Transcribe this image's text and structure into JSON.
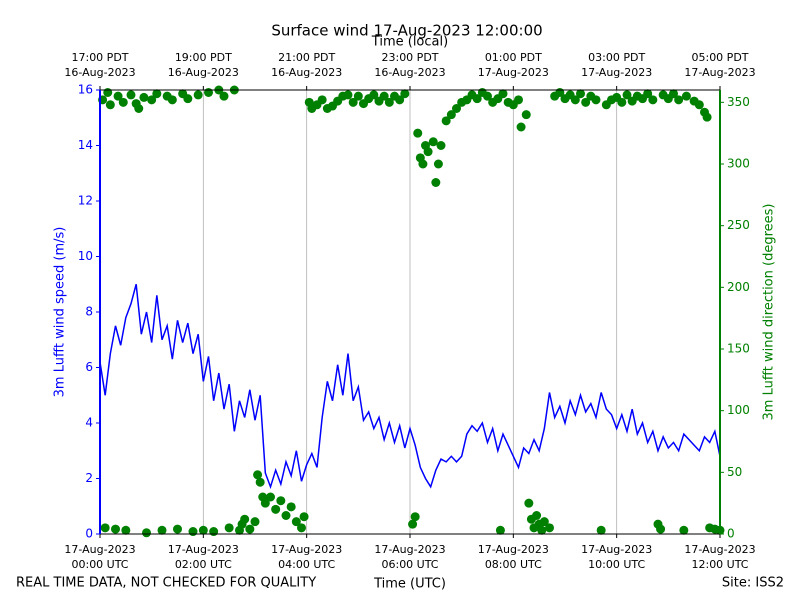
{
  "chart_data": {
    "type": "scatter",
    "title": "Surface wind 17-Aug-2023 12:00:00",
    "xlabel": "Time (UTC)",
    "x2label": "Time (local)",
    "ylabel": "3m Lufft wind speed (m/s)",
    "y2label": "3m Lufft wind direction (degrees)",
    "footer_left": "REAL TIME DATA, NOT CHECKED FOR QUALITY",
    "footer_right": "Site: ISS2",
    "grid": true,
    "xlim": [
      0,
      12
    ],
    "xticks": [
      {
        "value": 0,
        "label": [
          "17-Aug-2023",
          "00:00 UTC"
        ]
      },
      {
        "value": 2,
        "label": [
          "17-Aug-2023",
          "02:00 UTC"
        ]
      },
      {
        "value": 4,
        "label": [
          "17-Aug-2023",
          "04:00 UTC"
        ]
      },
      {
        "value": 6,
        "label": [
          "17-Aug-2023",
          "06:00 UTC"
        ]
      },
      {
        "value": 8,
        "label": [
          "17-Aug-2023",
          "08:00 UTC"
        ]
      },
      {
        "value": 10,
        "label": [
          "17-Aug-2023",
          "10:00 UTC"
        ]
      },
      {
        "value": 12,
        "label": [
          "17-Aug-2023",
          "12:00 UTC"
        ]
      }
    ],
    "x2ticks": [
      {
        "value": 0,
        "label": [
          "17:00 PDT",
          "16-Aug-2023"
        ]
      },
      {
        "value": 2,
        "label": [
          "19:00 PDT",
          "16-Aug-2023"
        ]
      },
      {
        "value": 4,
        "label": [
          "21:00 PDT",
          "16-Aug-2023"
        ]
      },
      {
        "value": 6,
        "label": [
          "23:00 PDT",
          "16-Aug-2023"
        ]
      },
      {
        "value": 8,
        "label": [
          "01:00 PDT",
          "17-Aug-2023"
        ]
      },
      {
        "value": 10,
        "label": [
          "03:00 PDT",
          "17-Aug-2023"
        ]
      },
      {
        "value": 12,
        "label": [
          "05:00 PDT",
          "17-Aug-2023"
        ]
      }
    ],
    "ylim": [
      0,
      16
    ],
    "yticks": [
      0,
      2,
      4,
      6,
      8,
      10,
      12,
      14,
      16
    ],
    "y2lim": [
      0,
      360
    ],
    "y2ticks": [
      0,
      50,
      100,
      150,
      200,
      250,
      300,
      350
    ],
    "series": [
      {
        "type": "line",
        "color": "#0000ff",
        "x": [
          0,
          0.1,
          0.2,
          0.3,
          0.4,
          0.5,
          0.6,
          0.7,
          0.8,
          0.9,
          1,
          1.1,
          1.2,
          1.3,
          1.4,
          1.5,
          1.6,
          1.7,
          1.8,
          1.9,
          2,
          2.1,
          2.2,
          2.3,
          2.4,
          2.5,
          2.6,
          2.7,
          2.8,
          2.9,
          3,
          3.1,
          3.2,
          3.3,
          3.4,
          3.5,
          3.6,
          3.7,
          3.8,
          3.9,
          4,
          4.1,
          4.2,
          4.3,
          4.4,
          4.5,
          4.6,
          4.7,
          4.8,
          4.9,
          5,
          5.1,
          5.2,
          5.3,
          5.4,
          5.5,
          5.6,
          5.7,
          5.8,
          5.9,
          6,
          6.1,
          6.2,
          6.3,
          6.4,
          6.5,
          6.6,
          6.7,
          6.8,
          6.9,
          7,
          7.1,
          7.2,
          7.3,
          7.4,
          7.5,
          7.6,
          7.7,
          7.8,
          7.9,
          8,
          8.1,
          8.2,
          8.3,
          8.4,
          8.5,
          8.6,
          8.7,
          8.8,
          8.9,
          9,
          9.1,
          9.2,
          9.3,
          9.4,
          9.5,
          9.6,
          9.7,
          9.8,
          9.9,
          10,
          10.1,
          10.2,
          10.3,
          10.4,
          10.5,
          10.6,
          10.7,
          10.8,
          10.9,
          11,
          11.1,
          11.2,
          11.3,
          11.4,
          11.5,
          11.6,
          11.7,
          11.8,
          11.9,
          12
        ],
        "values": [
          6.2,
          5.0,
          6.5,
          7.5,
          6.8,
          7.8,
          8.3,
          9.0,
          7.2,
          8.0,
          6.9,
          8.6,
          7.0,
          7.5,
          6.3,
          7.7,
          6.9,
          7.6,
          6.5,
          7.2,
          5.5,
          6.4,
          4.8,
          5.8,
          4.5,
          5.4,
          3.7,
          4.8,
          4.2,
          5.2,
          4.1,
          5.0,
          2.2,
          1.7,
          2.3,
          1.8,
          2.6,
          2.1,
          3.0,
          1.9,
          2.5,
          2.9,
          2.4,
          4.2,
          5.5,
          4.8,
          6.1,
          5.0,
          6.5,
          4.8,
          5.3,
          4.1,
          4.4,
          3.8,
          4.2,
          3.4,
          4.0,
          3.3,
          3.9,
          3.1,
          3.8,
          3.2,
          2.4,
          2.0,
          1.7,
          2.3,
          2.7,
          2.6,
          2.8,
          2.6,
          2.8,
          3.6,
          3.9,
          3.7,
          4.0,
          3.3,
          3.8,
          3.0,
          3.6,
          3.2,
          2.8,
          2.4,
          3.1,
          2.9,
          3.4,
          3.0,
          3.8,
          5.1,
          4.2,
          4.6,
          4.0,
          4.8,
          4.3,
          5.0,
          4.4,
          4.7,
          4.2,
          5.1,
          4.5,
          4.3,
          3.8,
          4.3,
          3.7,
          4.5,
          3.6,
          4.0,
          3.3,
          3.7,
          3.0,
          3.5,
          3.1,
          3.3,
          3.0,
          3.6,
          3.4,
          3.2,
          3.0,
          3.5,
          3.3,
          3.7,
          2.8
        ]
      },
      {
        "type": "scatter",
        "color": "#008000",
        "axis": "y2",
        "x": [
          0.05,
          0.1,
          0.15,
          0.2,
          0.3,
          0.35,
          0.45,
          0.5,
          0.6,
          0.7,
          0.75,
          0.85,
          0.9,
          1.0,
          1.1,
          1.2,
          1.3,
          1.4,
          1.5,
          1.6,
          1.7,
          1.8,
          1.9,
          2.0,
          2.1,
          2.2,
          2.3,
          2.4,
          2.5,
          2.6,
          2.7,
          2.75,
          2.8,
          2.9,
          3.0,
          3.05,
          3.1,
          3.15,
          3.2,
          3.3,
          3.4,
          3.5,
          3.6,
          3.7,
          3.8,
          3.9,
          3.95,
          4.05,
          4.1,
          4.2,
          4.3,
          4.4,
          4.5,
          4.6,
          4.7,
          4.8,
          4.9,
          5.0,
          5.1,
          5.2,
          5.3,
          5.4,
          5.5,
          5.6,
          5.7,
          5.8,
          5.9,
          6.05,
          6.1,
          6.15,
          6.2,
          6.25,
          6.3,
          6.35,
          6.45,
          6.5,
          6.55,
          6.6,
          6.7,
          6.8,
          6.9,
          7.0,
          7.1,
          7.2,
          7.3,
          7.4,
          7.5,
          7.6,
          7.7,
          7.75,
          7.8,
          7.9,
          8.0,
          8.1,
          8.15,
          8.25,
          8.3,
          8.35,
          8.4,
          8.45,
          8.5,
          8.55,
          8.6,
          8.7,
          8.8,
          8.9,
          9.0,
          9.1,
          9.2,
          9.3,
          9.4,
          9.5,
          9.6,
          9.7,
          9.8,
          9.9,
          10.0,
          10.1,
          10.2,
          10.3,
          10.4,
          10.5,
          10.6,
          10.7,
          10.8,
          10.85,
          10.9,
          11.0,
          11.1,
          11.2,
          11.3,
          11.35,
          11.5,
          11.6,
          11.7,
          11.75,
          11.8,
          11.9,
          12.0
        ],
        "values": [
          352,
          5,
          358,
          348,
          4,
          355,
          350,
          3,
          356,
          349,
          345,
          354,
          1,
          352,
          357,
          3,
          355,
          352,
          4,
          357,
          353,
          2,
          356,
          3,
          358,
          2,
          360,
          355,
          5,
          360,
          3,
          8,
          12,
          4,
          10,
          48,
          42,
          30,
          25,
          30,
          20,
          27,
          15,
          22,
          10,
          5,
          14,
          350,
          345,
          348,
          352,
          345,
          347,
          351,
          355,
          356,
          350,
          355,
          349,
          353,
          356,
          351,
          355,
          350,
          355,
          352,
          357,
          8,
          14,
          325,
          305,
          300,
          315,
          310,
          318,
          285,
          300,
          315,
          335,
          340,
          345,
          350,
          352,
          356,
          353,
          358,
          355,
          350,
          353,
          3,
          357,
          350,
          348,
          352,
          330,
          340,
          25,
          12,
          5,
          15,
          8,
          3,
          10,
          5,
          355,
          358,
          353,
          356,
          352,
          357,
          350,
          355,
          352,
          3,
          348,
          352,
          354,
          350,
          356,
          351,
          355,
          353,
          357,
          352,
          8,
          4,
          356,
          353,
          357,
          352,
          3,
          355,
          351,
          348,
          342,
          338,
          5,
          4,
          3
        ]
      }
    ]
  }
}
